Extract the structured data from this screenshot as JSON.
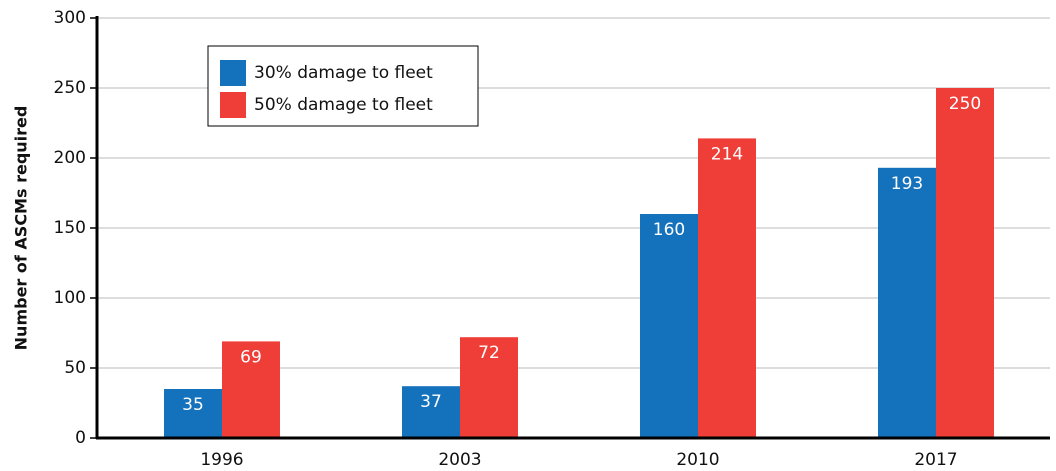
{
  "chart_data": {
    "type": "bar",
    "y_label": "Number of ASCMs required",
    "categories": [
      "1996",
      "2003",
      "2010",
      "2017"
    ],
    "series": [
      {
        "name": "30% damage to fleet",
        "color": "#1471bc",
        "values": [
          35,
          37,
          160,
          193
        ]
      },
      {
        "name": "50% damage to fleet",
        "color": "#ee3e37",
        "values": [
          69,
          72,
          214,
          250
        ]
      }
    ],
    "ylim": [
      0,
      300
    ],
    "yticks": [
      0,
      50,
      100,
      150,
      200,
      250,
      300
    ],
    "grid": true,
    "legend": "upper left"
  }
}
